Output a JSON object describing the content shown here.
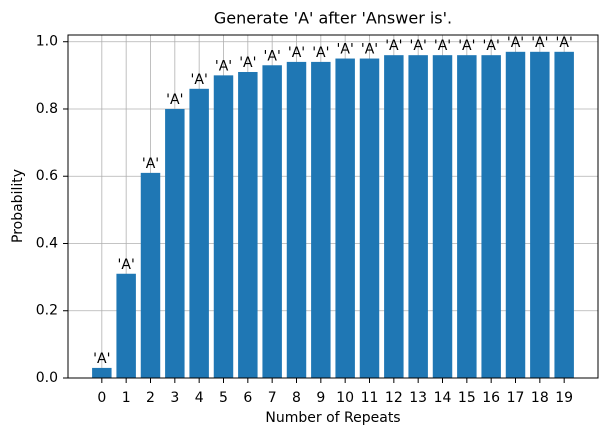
{
  "chart_data": {
    "type": "bar",
    "title": "Generate 'A' after 'Answer is'.",
    "x_label": "Number of Repeats",
    "y_label": "Probability",
    "categories": [
      "0",
      "1",
      "2",
      "3",
      "4",
      "5",
      "6",
      "7",
      "8",
      "9",
      "10",
      "11",
      "12",
      "13",
      "14",
      "15",
      "16",
      "17",
      "18",
      "19"
    ],
    "values": [
      0.03,
      0.31,
      0.61,
      0.8,
      0.86,
      0.9,
      0.91,
      0.93,
      0.94,
      0.94,
      0.95,
      0.95,
      0.96,
      0.96,
      0.96,
      0.96,
      0.96,
      0.97,
      0.97,
      0.97
    ],
    "bar_labels": [
      "'A'",
      "'A'",
      "'A'",
      "'A'",
      "'A'",
      "'A'",
      "'A'",
      "'A'",
      "'A'",
      "'A'",
      "'A'",
      "'A'",
      "'A'",
      "'A'",
      "'A'",
      "'A'",
      "'A'",
      "'A'",
      "'A'",
      "'A'"
    ],
    "color": "#1f77b4",
    "ylim": [
      0,
      1.02
    ],
    "yticks": [
      {
        "value": 0,
        "label": "0.0"
      },
      0.2,
      0.4,
      0.6,
      0.8,
      {
        "value": 1,
        "label": "1.0"
      }
    ],
    "grid": true
  }
}
